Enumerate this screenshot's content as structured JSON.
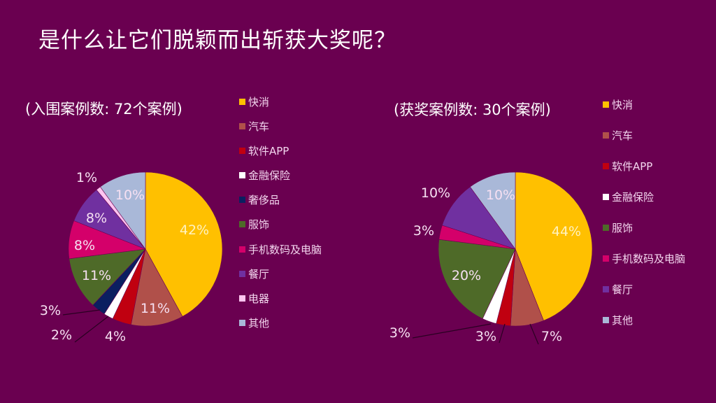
{
  "title": "是什么让它们脱颖而出斩获大奖呢？",
  "colors": {
    "background": "#6a0050"
  },
  "chart_data": [
    {
      "type": "pie",
      "title": "(入围案例数: 72个案例)",
      "categories": [
        "快消",
        "汽车",
        "软件APP",
        "金融保险",
        "奢侈品",
        "服饰",
        "手机数码及电脑",
        "餐厅",
        "电器",
        "其他"
      ],
      "values": [
        42,
        11,
        4,
        2,
        3,
        11,
        8,
        8,
        1,
        10
      ],
      "labels": [
        "42%",
        "11%",
        "4%",
        "2%",
        "3%",
        "11%",
        "8%",
        "8%",
        "1%",
        "10%"
      ],
      "colors": [
        "#ffc000",
        "#b0504a",
        "#c00010",
        "#ffffff",
        "#0b1f60",
        "#4e6a28",
        "#d4006a",
        "#7030a0",
        "#ffc4f0",
        "#a9b8d8"
      ],
      "legend": "right"
    },
    {
      "type": "pie",
      "title": "(获奖案例数: 30个案例)",
      "categories": [
        "快消",
        "汽车",
        "软件APP",
        "金融保险",
        "服饰",
        "手机数码及电脑",
        "餐厅",
        "其他"
      ],
      "values": [
        44,
        7,
        3,
        3,
        20,
        3,
        10,
        10
      ],
      "labels": [
        "44%",
        "7%",
        "3%",
        "3%",
        "20%",
        "3%",
        "10%",
        "10%"
      ],
      "colors": [
        "#ffc000",
        "#b0504a",
        "#c00010",
        "#ffffff",
        "#4e6a28",
        "#d4006a",
        "#7030a0",
        "#a9b8d8"
      ],
      "legend": "right"
    }
  ]
}
